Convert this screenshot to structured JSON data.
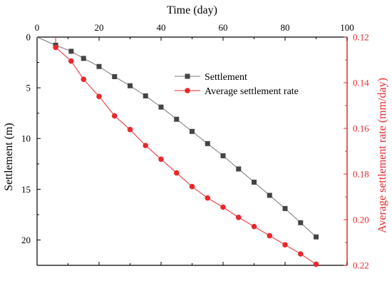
{
  "chart_data": {
    "type": "line",
    "title": "",
    "xlabel": "Time (day)",
    "ylabel_left": "Settlement (m)",
    "ylabel_right": "Average settlement rate (mm/day)",
    "xlim": [
      0,
      100
    ],
    "ylim_left": [
      0,
      22.5
    ],
    "ylim_right": [
      0.12,
      0.22
    ],
    "x_ticks": [
      0,
      20,
      40,
      60,
      80,
      100
    ],
    "y_left_ticks": [
      0,
      5,
      10,
      15,
      20
    ],
    "y_right_ticks": [
      "0.12",
      "0.14",
      "0.16",
      "0.18",
      "0.20",
      "0.22"
    ],
    "y_left_inverted": true,
    "y_right_inverted": true,
    "grid": false,
    "legend_position": "upper-center",
    "colors": {
      "settlement": "#444444",
      "rate": "#e8282d",
      "line": "#777777"
    },
    "series": [
      {
        "name": "Settlement",
        "axis": "left",
        "marker": "square",
        "x": [
          0,
          6,
          11,
          15,
          20,
          25,
          30,
          35,
          40,
          45,
          50,
          55,
          60,
          65,
          70,
          75,
          80,
          85,
          90
        ],
        "y": [
          0,
          0.8,
          1.4,
          2.1,
          2.9,
          3.9,
          4.8,
          5.8,
          6.9,
          8.1,
          9.3,
          10.5,
          11.7,
          13.0,
          14.3,
          15.6,
          16.9,
          18.3,
          19.7
        ]
      },
      {
        "name": "Average settlement rate",
        "axis": "right",
        "marker": "circle",
        "x": [
          6,
          11,
          15,
          20,
          25,
          30,
          35,
          40,
          45,
          50,
          55,
          60,
          65,
          70,
          75,
          80,
          85,
          90
        ],
        "y": [
          0.1245,
          0.1305,
          0.1385,
          0.146,
          0.1545,
          0.1605,
          0.1675,
          0.1735,
          0.1795,
          0.1855,
          0.1905,
          0.1945,
          0.199,
          0.203,
          0.207,
          0.211,
          0.215,
          0.2195
        ],
        "leading_segment": {
          "x": [
            6,
            6
          ],
          "y": [
            0.12,
            0.1245
          ]
        }
      }
    ]
  }
}
